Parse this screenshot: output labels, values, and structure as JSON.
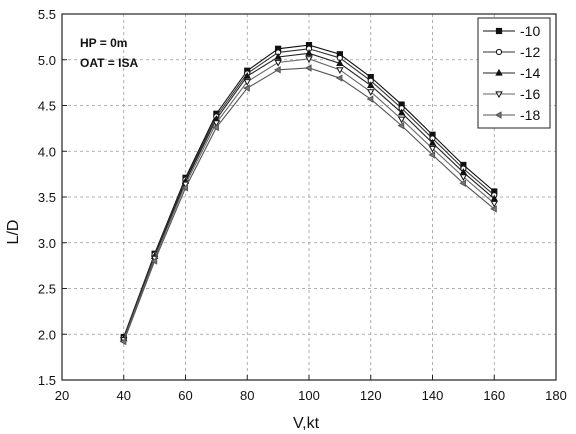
{
  "chart_data": {
    "type": "line",
    "title": "",
    "xlabel": "V,kt",
    "ylabel": "L/D",
    "xlim": [
      20,
      180
    ],
    "ylim": [
      1.5,
      5.5
    ],
    "xticks": [
      "20",
      "40",
      "60",
      "80",
      "100",
      "120",
      "140",
      "160",
      "180"
    ],
    "yticks": [
      "1.5",
      "2.0",
      "2.5",
      "3.0",
      "3.5",
      "4.0",
      "4.5",
      "5.0",
      "5.5"
    ],
    "grid": true,
    "legend_position": "top-right",
    "annotations": [
      "HP = 0m",
      "OAT = ISA"
    ],
    "x": [
      40,
      50,
      60,
      70,
      80,
      90,
      100,
      110,
      120,
      130,
      140,
      150,
      160
    ],
    "series": [
      {
        "name": "-10",
        "marker": "square",
        "values": [
          1.97,
          2.88,
          3.71,
          4.41,
          4.88,
          5.12,
          5.16,
          5.06,
          4.81,
          4.51,
          4.18,
          3.85,
          3.56
        ]
      },
      {
        "name": "-12",
        "marker": "circle",
        "values": [
          1.96,
          2.87,
          3.69,
          4.38,
          4.85,
          5.08,
          5.12,
          5.02,
          4.77,
          4.47,
          4.14,
          3.81,
          3.52
        ]
      },
      {
        "name": "-14",
        "marker": "triangle-up",
        "values": [
          1.95,
          2.85,
          3.67,
          4.35,
          4.82,
          5.03,
          5.07,
          4.96,
          4.72,
          4.42,
          4.09,
          3.77,
          3.48
        ]
      },
      {
        "name": "-16",
        "marker": "triangle-down",
        "values": [
          1.94,
          2.83,
          3.64,
          4.31,
          4.76,
          4.97,
          5.01,
          4.89,
          4.65,
          4.35,
          4.03,
          3.72,
          3.43
        ]
      },
      {
        "name": "-18",
        "marker": "triangle-left",
        "values": [
          1.92,
          2.8,
          3.6,
          4.26,
          4.69,
          4.89,
          4.91,
          4.8,
          4.57,
          4.28,
          3.96,
          3.65,
          3.37
        ]
      }
    ]
  }
}
